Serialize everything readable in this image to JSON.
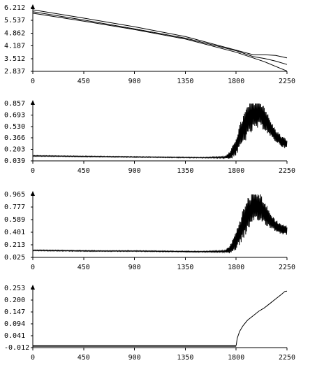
{
  "chart_data": [
    {
      "type": "line",
      "title": "",
      "xlabel": "",
      "ylabel": "",
      "xlim": [
        0,
        2250
      ],
      "ylim": [
        2.837,
        6.212
      ],
      "x_ticks": [
        "0",
        "450",
        "900",
        "1350",
        "1800",
        "2250"
      ],
      "y_ticks": [
        "6.212",
        "5.537",
        "4.862",
        "4.187",
        "3.512",
        "2.837"
      ],
      "grid": false,
      "series": [
        {
          "x": [
            0,
            450,
            900,
            1350,
            1800,
            1950,
            2050,
            2150,
            2250
          ],
          "y": [
            6.1,
            5.66,
            5.2,
            4.68,
            3.96,
            3.72,
            3.72,
            3.68,
            3.55
          ]
        },
        {
          "x": [
            0,
            450,
            900,
            1350,
            1800,
            1950,
            2050,
            2150,
            2250
          ],
          "y": [
            6.0,
            5.56,
            5.09,
            4.6,
            3.93,
            3.62,
            3.52,
            3.38,
            3.2
          ]
        },
        {
          "x": [
            0,
            450,
            900,
            1350,
            1800,
            1950,
            2050,
            2150,
            2250
          ],
          "y": [
            5.92,
            5.5,
            5.05,
            4.55,
            3.85,
            3.55,
            3.35,
            3.1,
            2.85
          ]
        }
      ]
    },
    {
      "type": "line",
      "title": "",
      "xlabel": "",
      "ylabel": "",
      "xlim": [
        0,
        2250
      ],
      "ylim": [
        0.039,
        0.857
      ],
      "x_ticks": [
        "0",
        "450",
        "900",
        "1350",
        "1800",
        "2250"
      ],
      "y_ticks": [
        "0.857",
        "0.693",
        "0.530",
        "0.366",
        "0.203",
        "0.039"
      ],
      "grid": false,
      "series": [
        {
          "x": [
            0,
            300,
            600,
            900,
            1200,
            1500,
            1700,
            1750,
            1800,
            1850,
            1900,
            1950,
            2000,
            2050,
            2100,
            2150,
            2200,
            2250
          ],
          "y": [
            0.11,
            0.105,
            0.1,
            0.095,
            0.09,
            0.085,
            0.09,
            0.12,
            0.25,
            0.45,
            0.6,
            0.7,
            0.72,
            0.66,
            0.5,
            0.4,
            0.32,
            0.28
          ],
          "noise": [
            0.006,
            0.006,
            0.006,
            0.006,
            0.006,
            0.006,
            0.012,
            0.06,
            0.14,
            0.2,
            0.24,
            0.24,
            0.22,
            0.18,
            0.13,
            0.09,
            0.08,
            0.07
          ]
        }
      ]
    },
    {
      "type": "line",
      "title": "",
      "xlabel": "",
      "ylabel": "",
      "xlim": [
        0,
        2250
      ],
      "ylim": [
        0.025,
        0.965
      ],
      "x_ticks": [
        "0",
        "450",
        "900",
        "1350",
        "1800",
        "2250"
      ],
      "y_ticks": [
        "0.965",
        "0.777",
        "0.589",
        "0.401",
        "0.213",
        "0.025"
      ],
      "grid": false,
      "series": [
        {
          "x": [
            0,
            300,
            600,
            900,
            1200,
            1500,
            1700,
            1750,
            1800,
            1850,
            1900,
            1950,
            2000,
            2050,
            2100,
            2150,
            2200,
            2250
          ],
          "y": [
            0.13,
            0.125,
            0.12,
            0.12,
            0.115,
            0.11,
            0.115,
            0.15,
            0.28,
            0.48,
            0.66,
            0.77,
            0.79,
            0.7,
            0.58,
            0.5,
            0.45,
            0.43
          ],
          "noise": [
            0.007,
            0.007,
            0.007,
            0.007,
            0.007,
            0.007,
            0.014,
            0.07,
            0.15,
            0.22,
            0.26,
            0.26,
            0.24,
            0.18,
            0.12,
            0.09,
            0.08,
            0.07
          ]
        }
      ]
    },
    {
      "type": "line",
      "title": "",
      "xlabel": "",
      "ylabel": "",
      "xlim": [
        0,
        2250
      ],
      "ylim": [
        -0.012,
        0.253
      ],
      "x_ticks": [
        "0",
        "450",
        "900",
        "1350",
        "1800",
        "2250"
      ],
      "y_ticks": [
        "0.253",
        "0.200",
        "0.147",
        "0.094",
        "0.041",
        "-0.012"
      ],
      "grid": false,
      "series": [
        {
          "x": [
            0,
            1780,
            1800
          ],
          "y": [
            -0.003,
            -0.003,
            -0.003
          ]
        },
        {
          "x": [
            0,
            1780,
            1800
          ],
          "y": [
            -0.006,
            -0.006,
            -0.006
          ]
        },
        {
          "x": [
            1800,
            1810,
            1830,
            1860,
            1900,
            1950,
            2000,
            2050,
            2100,
            2150,
            2200,
            2230,
            2250
          ],
          "y": [
            -0.003,
            0.03,
            0.06,
            0.085,
            0.11,
            0.13,
            0.15,
            0.165,
            0.185,
            0.205,
            0.225,
            0.238,
            0.24
          ]
        }
      ]
    }
  ]
}
